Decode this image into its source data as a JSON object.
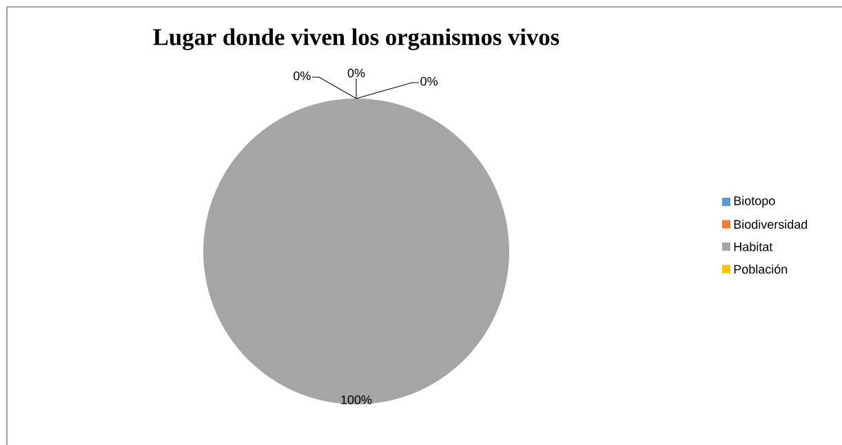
{
  "chart_data": {
    "type": "pie",
    "title": "Lugar donde viven los organismos vivos",
    "categories": [
      "Biotopo",
      "Biodiversidad",
      "Habitat",
      "Población"
    ],
    "values": [
      0,
      0,
      100,
      0
    ],
    "colors": [
      "#5b9bd5",
      "#ed7d31",
      "#a5a5a5",
      "#ffc000"
    ],
    "value_labels": [
      "0%",
      "0%",
      "100%",
      "0%"
    ],
    "legend": "right"
  }
}
